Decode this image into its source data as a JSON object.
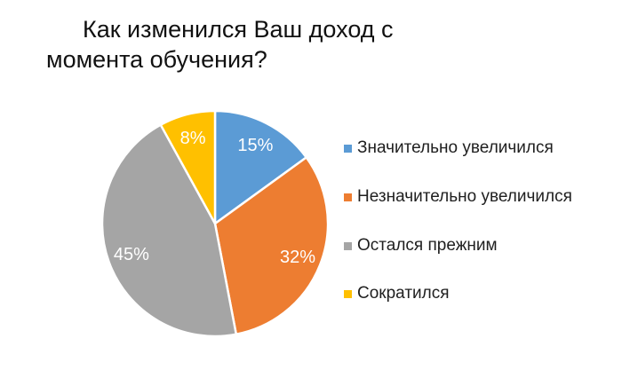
{
  "title": {
    "line1": "Как изменился Ваш доход с",
    "line2": "момента обучения?"
  },
  "chart_data": {
    "type": "pie",
    "title": "Как изменился Ваш доход с момента обучения?",
    "series": [
      {
        "label": "Значительно увеличился",
        "value": 15,
        "value_label": "15%",
        "color": "#5B9BD5"
      },
      {
        "label": "Незначительно увеличился",
        "value": 32,
        "value_label": "32%",
        "color": "#ED7D31"
      },
      {
        "label": "Остался прежним",
        "value": 45,
        "value_label": "45%",
        "color": "#A5A5A5"
      },
      {
        "label": "Сократился",
        "value": 8,
        "value_label": "8%",
        "color": "#FFC000"
      }
    ],
    "start_angle_deg": 0,
    "direction": "clockwise",
    "legend_position": "right",
    "slice_border_color": "#FFFFFF",
    "value_label_color": "#FFFFFF",
    "background_color": "#FFFFFF"
  }
}
